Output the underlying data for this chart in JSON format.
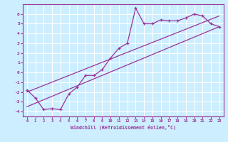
{
  "xlabel": "Windchill (Refroidissement éolien,°C)",
  "background_color": "#cceeff",
  "grid_color": "#ffffff",
  "line_color": "#993399",
  "xlim": [
    -0.5,
    23.5
  ],
  "ylim": [
    -4.5,
    7.0
  ],
  "xticks": [
    0,
    1,
    2,
    3,
    4,
    5,
    6,
    7,
    8,
    9,
    10,
    11,
    12,
    13,
    14,
    15,
    16,
    17,
    18,
    19,
    20,
    21,
    22,
    23
  ],
  "yticks": [
    -4,
    -3,
    -2,
    -1,
    0,
    1,
    2,
    3,
    4,
    5,
    6
  ],
  "line1_x": [
    0,
    1,
    2,
    3,
    4,
    5,
    6,
    7,
    8,
    9,
    10,
    11,
    12,
    13,
    14,
    15,
    16,
    17,
    18,
    19,
    20,
    21,
    22,
    23
  ],
  "line1_y": [
    -1.8,
    -2.6,
    -3.8,
    -3.7,
    -3.8,
    -2.2,
    -1.5,
    -0.3,
    -0.3,
    0.3,
    1.5,
    2.5,
    3.0,
    6.6,
    5.0,
    5.0,
    5.4,
    5.3,
    5.3,
    5.6,
    6.0,
    5.8,
    5.0,
    4.7
  ],
  "line3_x": [
    0,
    23
  ],
  "line3_y": [
    -3.5,
    4.7
  ],
  "line4_x": [
    0,
    23
  ],
  "line4_y": [
    -2.0,
    5.8
  ]
}
